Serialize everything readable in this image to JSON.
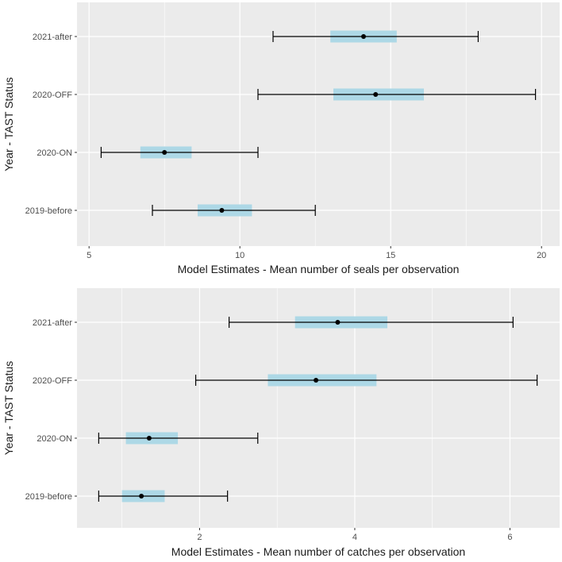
{
  "chart_data": [
    {
      "type": "scatter",
      "title": "",
      "xlabel": "Model Estimates - Mean number of seals per observation",
      "ylabel": "Year - TAST Status",
      "categories": [
        "2019-before",
        "2020-ON",
        "2020-OFF",
        "2021-after"
      ],
      "x_ticks": [
        5,
        10,
        15,
        20
      ],
      "xlim": [
        4.6,
        20.6
      ],
      "estimates": [
        9.4,
        7.5,
        14.5,
        14.1
      ],
      "ci_low": [
        7.1,
        5.4,
        10.6,
        11.1
      ],
      "ci_high": [
        12.5,
        10.6,
        19.8,
        17.9
      ],
      "box_low": [
        8.6,
        6.7,
        13.1,
        13.0
      ],
      "box_high": [
        10.4,
        8.4,
        16.1,
        15.2
      ],
      "grid": true,
      "legend": "none",
      "colors": {
        "panel": "#ebebeb",
        "grid": "#ffffff",
        "box": "#add8e6",
        "point": "#000000",
        "errorbar": "#000000"
      }
    },
    {
      "type": "scatter",
      "title": "",
      "xlabel": "Model Estimates - Mean number of catches per observation",
      "ylabel": "Year - TAST Status",
      "categories": [
        "2019-before",
        "2020-ON",
        "2020-OFF",
        "2021-after"
      ],
      "x_ticks": [
        2,
        4,
        6
      ],
      "xlim": [
        0.42,
        6.64
      ],
      "estimates": [
        1.25,
        1.35,
        3.5,
        3.78
      ],
      "ci_low": [
        0.7,
        0.7,
        1.95,
        2.38
      ],
      "ci_high": [
        2.36,
        2.75,
        6.35,
        6.04
      ],
      "box_low": [
        1.0,
        1.05,
        2.88,
        3.23
      ],
      "box_high": [
        1.55,
        1.72,
        4.28,
        4.42
      ],
      "grid": true,
      "legend": "none",
      "colors": {
        "panel": "#ebebeb",
        "grid": "#ffffff",
        "box": "#add8e6",
        "point": "#000000",
        "errorbar": "#000000"
      }
    }
  ]
}
